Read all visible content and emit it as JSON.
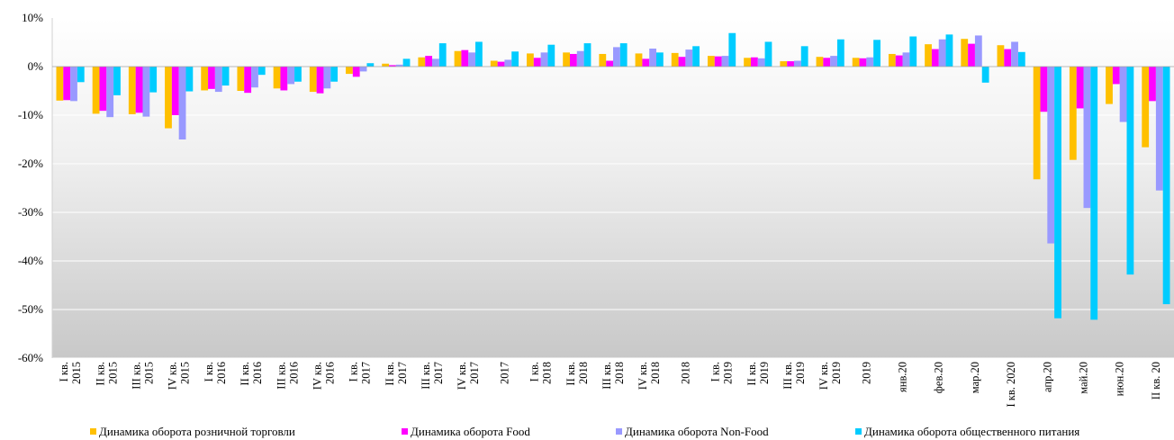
{
  "chart_data": {
    "type": "bar",
    "title": "",
    "xlabel": "",
    "ylabel": "",
    "ylim": [
      -60,
      10
    ],
    "yticks": [
      "10%",
      "0%",
      "-10%",
      "-20%",
      "-30%",
      "-40%",
      "-50%",
      "-60%"
    ],
    "grid": true,
    "legend_position": "bottom",
    "categories": [
      [
        "I кв.",
        "2015"
      ],
      [
        "II кв.",
        "2015"
      ],
      [
        "III кв.",
        "2015"
      ],
      [
        "IV кв.",
        "2015"
      ],
      [
        "I кв.",
        "2016"
      ],
      [
        "II кв.",
        "2016"
      ],
      [
        "III кв.",
        "2016"
      ],
      [
        "IV кв.",
        "2016"
      ],
      [
        "I кв.",
        "2017"
      ],
      [
        "II кв.",
        "2017"
      ],
      [
        "III кв.",
        "2017"
      ],
      [
        "IV кв.",
        "2017"
      ],
      [
        "2017"
      ],
      [
        "I кв.",
        "2018"
      ],
      [
        "II кв.",
        "2018"
      ],
      [
        "III кв.",
        "2018"
      ],
      [
        "IV кв.",
        "2018"
      ],
      [
        "2018"
      ],
      [
        "I кв.",
        "2019"
      ],
      [
        "II кв.",
        "2019"
      ],
      [
        "III кв.",
        "2019"
      ],
      [
        "IV кв.",
        "2019"
      ],
      [
        "2019"
      ],
      [
        "янв.20"
      ],
      [
        "фев.20"
      ],
      [
        "мар.20"
      ],
      [
        "I кв. 2020"
      ],
      [
        "апр.20"
      ],
      [
        "май.20"
      ],
      [
        "июн.20"
      ],
      [
        "II кв. 20"
      ]
    ],
    "series": [
      {
        "name": "Динамика оборота розничной торговли",
        "color": "#FFC000",
        "values": [
          -7.0,
          -9.7,
          -9.8,
          -12.7,
          -4.9,
          -5.0,
          -4.5,
          -5.2,
          -1.5,
          0.6,
          1.9,
          3.2,
          1.2,
          2.7,
          2.9,
          2.6,
          2.7,
          2.8,
          2.2,
          1.8,
          1.1,
          2.0,
          1.8,
          2.6,
          4.6,
          5.7,
          4.4,
          -23.2,
          -19.2,
          -7.7,
          -16.6
        ]
      },
      {
        "name": "Динамика оборота Food",
        "color": "#FF00FF",
        "values": [
          -6.9,
          -9.1,
          -9.5,
          -10.0,
          -4.6,
          -5.4,
          -4.9,
          -5.5,
          -2.1,
          0.3,
          2.2,
          3.4,
          1.0,
          1.8,
          2.6,
          1.2,
          1.6,
          2.0,
          2.1,
          1.9,
          1.1,
          1.8,
          1.7,
          2.3,
          3.6,
          4.7,
          3.6,
          -9.3,
          -8.6,
          -3.6,
          -7.1
        ]
      },
      {
        "name": "Динамика оборота Non-Food",
        "color": "#9999FF",
        "values": [
          -7.1,
          -10.4,
          -10.3,
          -15.0,
          -5.2,
          -4.3,
          -3.6,
          -4.5,
          -1.0,
          0.4,
          1.6,
          2.9,
          1.4,
          2.9,
          3.2,
          4.0,
          3.7,
          3.5,
          2.2,
          1.7,
          1.2,
          2.2,
          1.9,
          2.9,
          5.6,
          6.4,
          5.1,
          -36.4,
          -29.1,
          -11.4,
          -25.5
        ]
      },
      {
        "name": "Динамика оборота общественного питания",
        "color": "#00CCFF",
        "values": [
          -3.2,
          -5.9,
          -5.3,
          -5.1,
          -3.9,
          -1.7,
          -3.1,
          -3.1,
          0.7,
          1.6,
          4.8,
          5.1,
          3.1,
          4.5,
          4.8,
          4.8,
          2.9,
          4.2,
          6.9,
          5.1,
          4.2,
          5.6,
          5.5,
          6.2,
          6.6,
          -3.3,
          3.0,
          -51.8,
          -52.1,
          -42.8,
          -48.9
        ]
      }
    ]
  }
}
